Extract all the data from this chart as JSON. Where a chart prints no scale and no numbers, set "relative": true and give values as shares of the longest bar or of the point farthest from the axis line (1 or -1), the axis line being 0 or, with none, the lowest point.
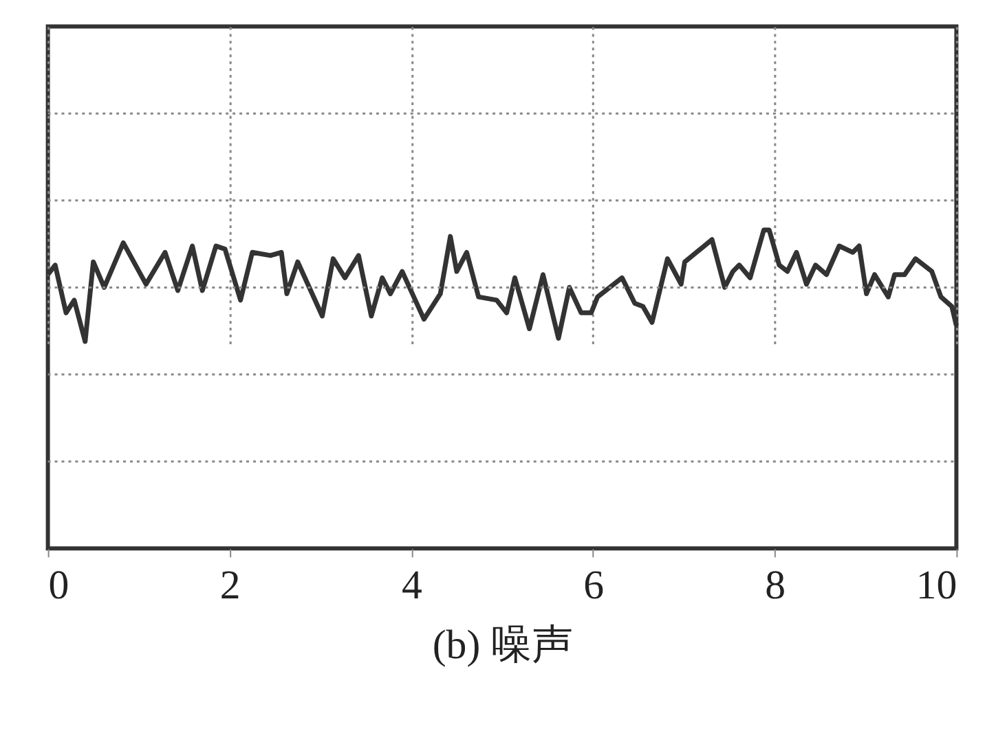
{
  "chart_data": {
    "type": "line",
    "relative": true,
    "xlabel": "(b) 噪声",
    "xlim": [
      0,
      10
    ],
    "xticks": [
      0,
      2,
      4,
      6,
      8,
      10
    ],
    "grid": true,
    "marker": "none",
    "line_style": "solid",
    "series": [
      {
        "color": "#333333",
        "x": [
          0.0,
          0.08,
          0.2,
          0.29,
          0.41,
          0.5,
          0.62,
          0.83,
          1.08,
          1.29,
          1.43,
          1.59,
          1.7,
          1.85,
          1.95,
          2.12,
          2.25,
          2.45,
          2.57,
          2.63,
          2.75,
          3.02,
          3.14,
          3.27,
          3.42,
          3.56,
          3.68,
          3.77,
          3.9,
          4.14,
          4.32,
          4.43,
          4.5,
          4.61,
          4.74,
          4.94,
          5.05,
          5.14,
          5.3,
          5.45,
          5.62,
          5.74,
          5.87,
          5.98,
          6.05,
          6.32,
          6.46,
          6.55,
          6.65,
          6.82,
          6.97,
          7.01,
          7.31,
          7.45,
          7.54,
          7.61,
          7.73,
          7.88,
          7.94,
          8.05,
          8.14,
          8.24,
          8.35,
          8.45,
          8.57,
          8.71,
          8.86,
          8.93,
          9.01,
          9.1,
          9.25,
          9.32,
          9.43,
          9.55,
          9.73,
          9.83,
          9.95,
          10.0
        ],
        "values": [
          0.86,
          0.89,
          0.74,
          0.78,
          0.65,
          0.9,
          0.82,
          0.96,
          0.83,
          0.93,
          0.81,
          0.95,
          0.81,
          0.95,
          0.94,
          0.78,
          0.93,
          0.92,
          0.93,
          0.8,
          0.9,
          0.73,
          0.91,
          0.85,
          0.92,
          0.73,
          0.85,
          0.8,
          0.87,
          0.72,
          0.8,
          0.98,
          0.87,
          0.93,
          0.79,
          0.78,
          0.74,
          0.85,
          0.69,
          0.86,
          0.66,
          0.82,
          0.74,
          0.74,
          0.79,
          0.85,
          0.77,
          0.76,
          0.71,
          0.91,
          0.83,
          0.9,
          0.97,
          0.82,
          0.87,
          0.89,
          0.85,
          1.0,
          1.0,
          0.89,
          0.87,
          0.93,
          0.83,
          0.89,
          0.86,
          0.95,
          0.93,
          0.95,
          0.8,
          0.86,
          0.79,
          0.86,
          0.86,
          0.91,
          0.87,
          0.79,
          0.76,
          0.7
        ]
      }
    ]
  }
}
